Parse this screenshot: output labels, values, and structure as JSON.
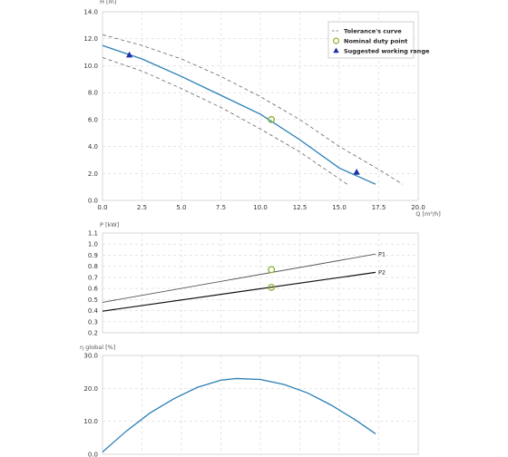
{
  "chart_data": [
    {
      "type": "line",
      "ylabel": "H [m]",
      "xlabel": "Q [m³/h]",
      "xlim": [
        0,
        20
      ],
      "ylim": [
        0,
        14
      ],
      "x_ticks": [
        "0.0",
        "2.5",
        "5.0",
        "7.5",
        "10.0",
        "12.5",
        "15.0",
        "17.5",
        "20.0"
      ],
      "y_ticks": [
        "0.0",
        "2.0",
        "4.0",
        "6.0",
        "8.0",
        "10.0",
        "12.0",
        "14.0"
      ],
      "grid": true,
      "legend_position": "top-right",
      "legend": {
        "tolerance": "Tolerance's curve",
        "duty": "Nominal duty point",
        "range": "Suggested working range"
      },
      "series": [
        {
          "role": "main",
          "color": "#2a7fb5",
          "x": [
            0,
            2.5,
            5,
            7.5,
            10,
            12.5,
            15,
            17.3
          ],
          "y": [
            11.5,
            10.5,
            9.2,
            7.8,
            6.4,
            4.5,
            2.4,
            1.2
          ]
        },
        {
          "role": "tolerance-upper",
          "color": "#666666",
          "x": [
            0,
            2.5,
            5,
            7.5,
            10,
            12.5,
            15,
            17.5,
            19.0
          ],
          "y": [
            12.3,
            11.5,
            10.5,
            9.2,
            7.7,
            6.0,
            4.0,
            2.3,
            1.2
          ]
        },
        {
          "role": "tolerance-lower",
          "color": "#666666",
          "x": [
            0,
            2.5,
            5,
            7.5,
            10,
            12.5,
            15.5
          ],
          "y": [
            10.6,
            9.6,
            8.3,
            6.9,
            5.3,
            3.6,
            1.2
          ]
        }
      ],
      "duty_point": {
        "x": 10.7,
        "y": 6.0,
        "color": "#8ab52d"
      },
      "range_points": [
        {
          "x": 1.7,
          "y": 10.8
        },
        {
          "x": 16.1,
          "y": 2.1
        }
      ],
      "range_color": "#1a2fa8"
    },
    {
      "type": "line",
      "ylabel": "P [kW]",
      "xlim": [
        0,
        20
      ],
      "ylim": [
        0.2,
        1.1
      ],
      "y_ticks": [
        "0.2",
        "0.3",
        "0.4",
        "0.5",
        "0.6",
        "0.7",
        "0.8",
        "0.9",
        "1.0",
        "1.1"
      ],
      "grid": true,
      "series": [
        {
          "name": "P1",
          "color": "#555555",
          "x": [
            0,
            17.3
          ],
          "y": [
            0.475,
            0.91
          ]
        },
        {
          "name": "P2",
          "color": "#111111",
          "x": [
            0,
            17.3
          ],
          "y": [
            0.395,
            0.745
          ]
        }
      ],
      "duty_points": [
        {
          "x": 10.7,
          "y": 0.77
        },
        {
          "x": 10.7,
          "y": 0.61
        }
      ],
      "duty_color": "#8ab52d"
    },
    {
      "type": "line",
      "ylabel": "η global [%]",
      "xlim": [
        0,
        20
      ],
      "ylim": [
        0,
        30
      ],
      "y_ticks": [
        "0.0",
        "10.0",
        "20.0",
        "30.0"
      ],
      "grid": true,
      "series": [
        {
          "role": "efficiency",
          "color": "#2a7fb5",
          "x": [
            0,
            1.5,
            3,
            4.5,
            6,
            7.5,
            8.5,
            10,
            11.5,
            13,
            14.5,
            16,
            17.3
          ],
          "y": [
            0.7,
            7.0,
            12.5,
            16.8,
            20.3,
            22.5,
            23.0,
            22.7,
            21.2,
            18.6,
            14.9,
            10.5,
            6.2
          ]
        }
      ]
    }
  ]
}
